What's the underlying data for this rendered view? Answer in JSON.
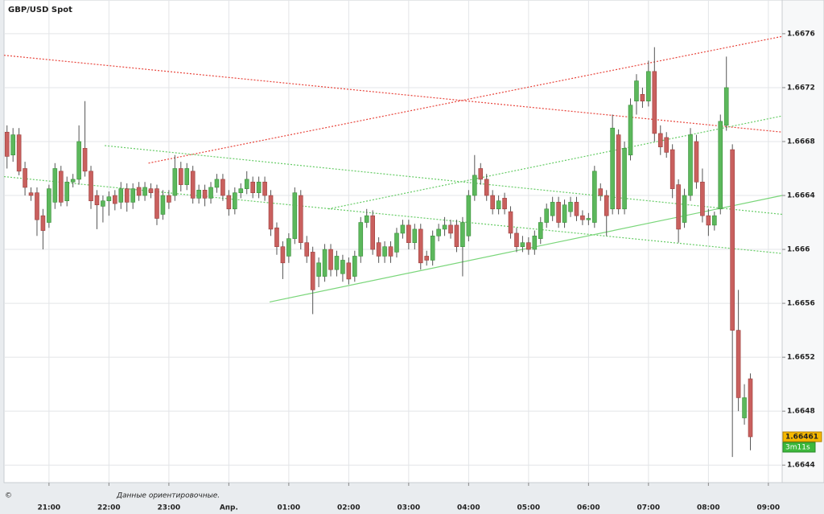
{
  "chart_data": {
    "type": "candlestick",
    "title": "GBP/USD Spot",
    "footnote": "Данные ориентировочные.",
    "copyright": "©",
    "current_price": 1.66461,
    "countdown": "3m11s",
    "up_color": "#5cb85c",
    "down_color": "#c9605e",
    "grid": true,
    "xlim": [
      20.25,
      33.23
    ],
    "ylim": [
      1.66427,
      1.66785
    ],
    "yticks": [
      1.6644,
      1.6648,
      1.6652,
      1.6656,
      1.666,
      1.6664,
      1.6668,
      1.6672,
      1.6676
    ],
    "xticks": [
      {
        "value": 21,
        "label": "21:00"
      },
      {
        "value": 22,
        "label": "22:00"
      },
      {
        "value": 23,
        "label": "23:00"
      },
      {
        "value": 24,
        "label": "Апр."
      },
      {
        "value": 25,
        "label": "01:00"
      },
      {
        "value": 26,
        "label": "02:00"
      },
      {
        "value": 27,
        "label": "03:00"
      },
      {
        "value": 28,
        "label": "04:00"
      },
      {
        "value": 29,
        "label": "05:00"
      },
      {
        "value": 30,
        "label": "06:00"
      },
      {
        "value": 31,
        "label": "07:00"
      },
      {
        "value": 32,
        "label": "08:00"
      },
      {
        "value": 33,
        "label": "09:00"
      }
    ],
    "x": [
      20.3,
      20.4,
      20.5,
      20.6,
      20.7,
      20.8,
      20.9,
      21.0,
      21.1,
      21.2,
      21.3,
      21.4,
      21.5,
      21.6,
      21.7,
      21.8,
      21.9,
      22.0,
      22.1,
      22.2,
      22.3,
      22.4,
      22.5,
      22.6,
      22.7,
      22.8,
      22.9,
      23.0,
      23.1,
      23.2,
      23.3,
      23.4,
      23.5,
      23.6,
      23.7,
      23.8,
      23.9,
      24.0,
      24.1,
      24.2,
      24.3,
      24.4,
      24.5,
      24.6,
      24.7,
      24.8,
      24.9,
      25.0,
      25.1,
      25.2,
      25.3,
      25.4,
      25.5,
      25.6,
      25.7,
      25.8,
      25.9,
      26.0,
      26.1,
      26.2,
      26.3,
      26.4,
      26.5,
      26.6,
      26.7,
      26.8,
      26.9,
      27.0,
      27.1,
      27.2,
      27.3,
      27.4,
      27.5,
      27.6,
      27.7,
      27.8,
      27.9,
      28.0,
      28.1,
      28.2,
      28.3,
      28.4,
      28.5,
      28.6,
      28.7,
      28.8,
      28.9,
      29.0,
      29.1,
      29.2,
      29.3,
      29.4,
      29.5,
      29.6,
      29.7,
      29.8,
      29.9,
      30.0,
      30.1,
      30.2,
      30.3,
      30.4,
      30.5,
      30.6,
      30.7,
      30.8,
      30.9,
      31.0,
      31.1,
      31.2,
      31.3,
      31.4,
      31.5,
      31.6,
      31.7,
      31.8,
      31.9,
      32.0,
      32.1,
      32.2,
      32.3,
      32.4,
      32.5,
      32.6,
      32.7
    ],
    "open": [
      1.66687,
      1.6667,
      1.66685,
      1.6666,
      1.66642,
      1.66642,
      1.66625,
      1.6662,
      1.66635,
      1.66658,
      1.66636,
      1.6665,
      1.66652,
      1.66675,
      1.66658,
      1.6664,
      1.66632,
      1.66636,
      1.6664,
      1.66635,
      1.66645,
      1.66635,
      1.66646,
      1.6664,
      1.66645,
      1.66645,
      1.66626,
      1.6664,
      1.6664,
      1.6666,
      1.66648,
      1.66658,
      1.66638,
      1.66644,
      1.66638,
      1.66646,
      1.66652,
      1.6664,
      1.6663,
      1.66642,
      1.66645,
      1.6665,
      1.66642,
      1.6665,
      1.6664,
      1.66616,
      1.66602,
      1.66595,
      1.66608,
      1.6664,
      1.66605,
      1.66598,
      1.6658,
      1.6658,
      1.666,
      1.66585,
      1.66582,
      1.6659,
      1.6658,
      1.66595,
      1.6662,
      1.66625,
      1.66605,
      1.66595,
      1.66602,
      1.66598,
      1.66612,
      1.66618,
      1.66605,
      1.66615,
      1.66595,
      1.66592,
      1.6661,
      1.66615,
      1.66618,
      1.66618,
      1.66602,
      1.6661,
      1.6664,
      1.6666,
      1.66652,
      1.6664,
      1.6663,
      1.66638,
      1.66628,
      1.66612,
      1.66602,
      1.66605,
      1.666,
      1.66608,
      1.6662,
      1.66625,
      1.66635,
      1.6662,
      1.66628,
      1.66635,
      1.66625,
      1.66622,
      1.6662,
      1.66645,
      1.6664,
      1.6663,
      1.66685,
      1.6663,
      1.6667,
      1.6671,
      1.66715,
      1.6671,
      1.66732,
      1.66686,
      1.66683,
      1.66674,
      1.66648,
      1.6662,
      1.6664,
      1.6668,
      1.6665,
      1.66625,
      1.66618,
      1.6663,
      1.66692,
      1.66674,
      1.6654,
      1.66475,
      1.66504
    ],
    "high": [
      1.66692,
      1.6669,
      1.6669,
      1.66665,
      1.66646,
      1.66646,
      1.6663,
      1.66648,
      1.66664,
      1.66662,
      1.66654,
      1.66656,
      1.66692,
      1.6671,
      1.66662,
      1.66644,
      1.6664,
      1.66643,
      1.66644,
      1.6665,
      1.66649,
      1.66649,
      1.6665,
      1.6665,
      1.66649,
      1.66648,
      1.66644,
      1.66644,
      1.6667,
      1.66665,
      1.66664,
      1.66662,
      1.66648,
      1.66648,
      1.6665,
      1.66656,
      1.66656,
      1.66644,
      1.66646,
      1.66649,
      1.66658,
      1.66654,
      1.66654,
      1.66654,
      1.66644,
      1.6662,
      1.66606,
      1.66612,
      1.66646,
      1.66644,
      1.6661,
      1.66602,
      1.66594,
      1.66604,
      1.66604,
      1.66599,
      1.66596,
      1.66594,
      1.66599,
      1.66624,
      1.6663,
      1.66629,
      1.66609,
      1.66606,
      1.66606,
      1.66616,
      1.66622,
      1.66622,
      1.66619,
      1.66619,
      1.66599,
      1.66614,
      1.66619,
      1.66624,
      1.66622,
      1.66622,
      1.66624,
      1.66644,
      1.6667,
      1.66664,
      1.66656,
      1.66644,
      1.6664,
      1.66642,
      1.66632,
      1.66616,
      1.6661,
      1.66609,
      1.66614,
      1.66624,
      1.66634,
      1.66639,
      1.66639,
      1.66637,
      1.66639,
      1.66639,
      1.66629,
      1.66627,
      1.66662,
      1.66649,
      1.66644,
      1.667,
      1.66689,
      1.6668,
      1.66712,
      1.6673,
      1.6672,
      1.6674,
      1.6675,
      1.66692,
      1.66687,
      1.66678,
      1.66652,
      1.66645,
      1.6669,
      1.66685,
      1.6666,
      1.6663,
      1.66628,
      1.667,
      1.66743,
      1.66678,
      1.6657,
      1.665,
      1.66508
    ],
    "low": [
      1.6666,
      1.66665,
      1.66655,
      1.6664,
      1.66636,
      1.6661,
      1.666,
      1.66616,
      1.6663,
      1.66632,
      1.66632,
      1.66646,
      1.66648,
      1.66654,
      1.6663,
      1.66615,
      1.6662,
      1.66625,
      1.66629,
      1.6663,
      1.66628,
      1.6663,
      1.66636,
      1.66636,
      1.66638,
      1.66618,
      1.66622,
      1.6663,
      1.66636,
      1.66643,
      1.66644,
      1.66634,
      1.66634,
      1.66632,
      1.66634,
      1.66642,
      1.66636,
      1.66625,
      1.66626,
      1.66638,
      1.66641,
      1.66638,
      1.66638,
      1.66636,
      1.6661,
      1.66596,
      1.66578,
      1.6659,
      1.66604,
      1.666,
      1.6659,
      1.66552,
      1.66572,
      1.66576,
      1.6658,
      1.6658,
      1.66576,
      1.66574,
      1.66576,
      1.6659,
      1.66616,
      1.66596,
      1.6659,
      1.6659,
      1.6659,
      1.66594,
      1.66608,
      1.666,
      1.666,
      1.66585,
      1.66588,
      1.66588,
      1.66606,
      1.6661,
      1.66608,
      1.66598,
      1.6658,
      1.66606,
      1.66636,
      1.66648,
      1.66636,
      1.66626,
      1.66626,
      1.66626,
      1.66608,
      1.66598,
      1.66598,
      1.66596,
      1.66596,
      1.66604,
      1.66616,
      1.66621,
      1.66616,
      1.66616,
      1.66624,
      1.66621,
      1.66618,
      1.66618,
      1.66616,
      1.66636,
      1.6661,
      1.66626,
      1.66626,
      1.66626,
      1.66666,
      1.667,
      1.66705,
      1.66706,
      1.6668,
      1.6667,
      1.66668,
      1.66638,
      1.66605,
      1.66616,
      1.66636,
      1.66645,
      1.6662,
      1.6661,
      1.66614,
      1.66626,
      1.66688,
      1.66446,
      1.6648,
      1.6647,
      1.66451
    ],
    "close": [
      1.66669,
      1.66685,
      1.66658,
      1.66646,
      1.6664,
      1.66622,
      1.66614,
      1.66645,
      1.6666,
      1.66635,
      1.6665,
      1.66652,
      1.6668,
      1.66658,
      1.66636,
      1.66633,
      1.66636,
      1.66639,
      1.66634,
      1.66645,
      1.66635,
      1.66645,
      1.6664,
      1.66646,
      1.66642,
      1.66623,
      1.6664,
      1.66635,
      1.6666,
      1.66648,
      1.6666,
      1.66638,
      1.66644,
      1.66638,
      1.66646,
      1.66652,
      1.6664,
      1.6663,
      1.66642,
      1.66645,
      1.66652,
      1.66642,
      1.6665,
      1.6664,
      1.66615,
      1.66602,
      1.6659,
      1.66608,
      1.66642,
      1.66605,
      1.66595,
      1.6657,
      1.6659,
      1.666,
      1.66585,
      1.66595,
      1.66592,
      1.66578,
      1.66595,
      1.6662,
      1.66625,
      1.666,
      1.66595,
      1.66602,
      1.66595,
      1.66612,
      1.66618,
      1.66605,
      1.66615,
      1.6659,
      1.66592,
      1.6661,
      1.66615,
      1.66618,
      1.66612,
      1.66602,
      1.6662,
      1.6664,
      1.66655,
      1.66652,
      1.6664,
      1.6663,
      1.66636,
      1.6663,
      1.66612,
      1.66602,
      1.66605,
      1.666,
      1.6661,
      1.6662,
      1.6663,
      1.66635,
      1.6662,
      1.66633,
      1.66635,
      1.66625,
      1.66622,
      1.66623,
      1.66658,
      1.6664,
      1.66625,
      1.6669,
      1.6663,
      1.66675,
      1.66707,
      1.66725,
      1.6671,
      1.66732,
      1.66686,
      1.66676,
      1.66672,
      1.66645,
      1.66615,
      1.6664,
      1.66685,
      1.6665,
      1.66625,
      1.66618,
      1.66625,
      1.66695,
      1.6672,
      1.6654,
      1.6649,
      1.6649,
      1.66461
    ],
    "lines": [
      {
        "color": "#e8453c",
        "style": "dotted",
        "x": [
          20.25,
          33.23
        ],
        "y": [
          1.66744,
          1.66687
        ]
      },
      {
        "color": "#e8453c",
        "style": "dotted",
        "x": [
          22.66,
          33.23
        ],
        "y": [
          1.66664,
          1.66758
        ]
      },
      {
        "color": "#66cc66",
        "style": "dotted",
        "x": [
          21.93,
          33.23
        ],
        "y": [
          1.66677,
          1.66626
        ]
      },
      {
        "color": "#66cc66",
        "style": "dotted",
        "x": [
          20.25,
          33.23
        ],
        "y": [
          1.66654,
          1.66597
        ]
      },
      {
        "color": "#66cc66",
        "style": "dotted",
        "x": [
          25.66,
          33.23
        ],
        "y": [
          1.6663,
          1.66699
        ]
      },
      {
        "color": "#7ad67a",
        "style": "solid",
        "x": [
          24.68,
          33.23
        ],
        "y": [
          1.66561,
          1.6664
        ]
      }
    ]
  }
}
